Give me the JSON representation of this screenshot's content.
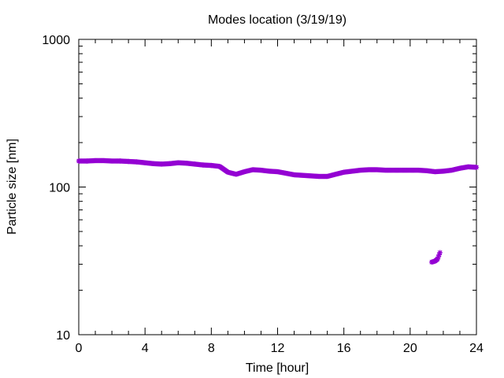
{
  "chart_data": {
    "type": "scatter",
    "title": "Modes location (3/19/19)",
    "xlabel": "Time [hour]",
    "ylabel": "Particle size [nm]",
    "xlim": [
      0,
      24
    ],
    "ylim": [
      10,
      1000
    ],
    "yscale": "log",
    "xticks": [
      0,
      4,
      8,
      12,
      16,
      20,
      24
    ],
    "xtick_labels": [
      "0",
      "4",
      "8",
      "12",
      "16",
      "20",
      "24"
    ],
    "yticks": [
      10,
      100,
      1000
    ],
    "ytick_labels": [
      "10",
      "100",
      "1000"
    ],
    "grid": false,
    "legend": "none",
    "marker_color": "#9400D3",
    "series": [
      {
        "x": [
          0,
          0.5,
          1,
          1.5,
          2,
          2.5,
          3,
          3.5,
          4,
          4.5,
          5,
          5.5,
          6,
          6.5,
          7,
          7.5,
          8,
          8.5,
          9,
          9.5,
          10,
          10.5,
          11,
          11.5,
          12,
          12.5,
          13,
          13.5,
          14,
          14.5,
          15,
          15.5,
          16,
          16.5,
          17,
          17.5,
          18,
          18.5,
          19,
          19.5,
          20,
          20.5,
          21,
          21.5,
          22,
          22.5,
          23,
          23.5,
          24
        ],
        "values": [
          150,
          150,
          151,
          151,
          150,
          150,
          149,
          148,
          146,
          144,
          143,
          144,
          146,
          145,
          143,
          141,
          140,
          138,
          126,
          122,
          127,
          131,
          130,
          128,
          127,
          124,
          121,
          120,
          119,
          118,
          118,
          122,
          126,
          128,
          130,
          131,
          131,
          130,
          130,
          130,
          130,
          130,
          129,
          127,
          128,
          130,
          134,
          137,
          136
        ]
      },
      {
        "x": [
          21.3,
          21.5,
          21.65,
          21.8
        ],
        "values": [
          31,
          31.5,
          32.5,
          36
        ]
      }
    ]
  }
}
